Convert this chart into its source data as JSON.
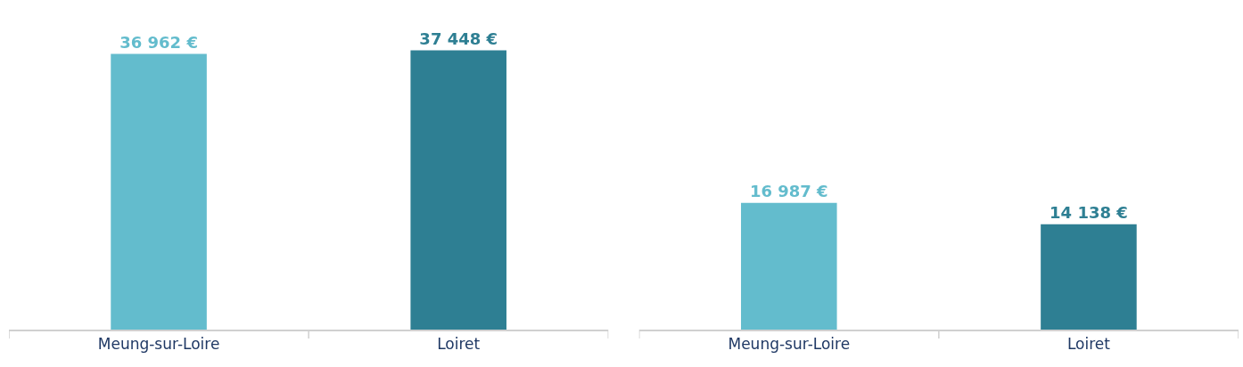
{
  "chart_data": [
    {
      "type": "bar",
      "categories": [
        "Meung-sur-Loire",
        "Loiret"
      ],
      "values": [
        36962,
        37448
      ],
      "colors": [
        "#63bccd",
        "#2e7f93"
      ],
      "value_labels": [
        "36 962 €",
        "37 448 €"
      ],
      "tick_labels": "x"
    },
    {
      "type": "bar",
      "categories": [
        "Meung-sur-Loire",
        "Loiret"
      ],
      "values": [
        16987,
        14138
      ],
      "colors": [
        "#63bccd",
        "#2e7f93"
      ],
      "value_labels": [
        "16 987 €",
        "14 138 €"
      ],
      "tick_labels": "x"
    }
  ]
}
